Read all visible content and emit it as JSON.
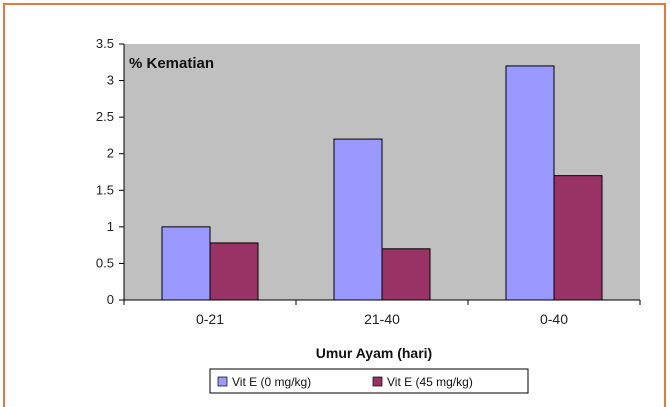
{
  "chart_data": {
    "type": "bar",
    "annotation": "% Kematian",
    "xlabel": "Umur Ayam (hari)",
    "ylabel": "",
    "categories": [
      "0-21",
      "21-40",
      "0-40"
    ],
    "series": [
      {
        "name": "Vit E (0 mg/kg)",
        "values": [
          1.0,
          2.2,
          3.2
        ],
        "color": "#9999ff"
      },
      {
        "name": "Vit E (45 mg/kg)",
        "values": [
          0.78,
          0.7,
          1.7
        ],
        "color": "#993366"
      }
    ],
    "ylim": [
      0,
      3.5
    ],
    "yticks": [
      "0",
      "0.5",
      "1",
      "1.5",
      "2",
      "2.5",
      "3",
      "3.5"
    ],
    "plot_background": "#c0c0c0",
    "grid": false,
    "legend_position": "bottom"
  }
}
